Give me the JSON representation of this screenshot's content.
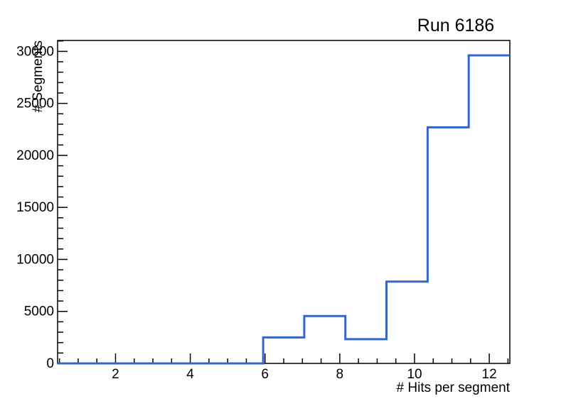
{
  "title": "Run 6186",
  "axes": {
    "x_title": "# Hits per segment",
    "y_title": "# Segments"
  },
  "chart_data": {
    "type": "histogram",
    "title": "Run 6186",
    "xlabel": "# Hits per segment",
    "ylabel": "# Segments",
    "xlim": [
      0.45,
      12.55
    ],
    "ylim": [
      0,
      31050
    ],
    "grid": false,
    "legend": null,
    "bin_edges": [
      0.45,
      1.55,
      2.65,
      3.75,
      4.85,
      5.95,
      7.05,
      8.15,
      9.25,
      10.35,
      11.45,
      12.55
    ],
    "counts": [
      0,
      0,
      0,
      0,
      0,
      2500,
      4550,
      2330,
      7860,
      22700,
      29620
    ],
    "x_major_ticks": [
      {
        "v": 2,
        "label": "2"
      },
      {
        "v": 4,
        "label": "4"
      },
      {
        "v": 6,
        "label": "6"
      },
      {
        "v": 8,
        "label": "8"
      },
      {
        "v": 10,
        "label": "10"
      },
      {
        "v": 12,
        "label": "12"
      }
    ],
    "y_major_ticks": [
      {
        "v": 0,
        "label": "0"
      },
      {
        "v": 5000,
        "label": "5000"
      },
      {
        "v": 10000,
        "label": "10000"
      },
      {
        "v": 15000,
        "label": "15000"
      },
      {
        "v": 20000,
        "label": "20000"
      },
      {
        "v": 25000,
        "label": "25000"
      },
      {
        "v": 30000,
        "label": "30000"
      }
    ],
    "x_minor_step": 0.5,
    "y_minor_step": 1000,
    "line_color": "#3566c4",
    "line_width": 3,
    "axis_color": "#000000",
    "background": "#ffffff"
  }
}
